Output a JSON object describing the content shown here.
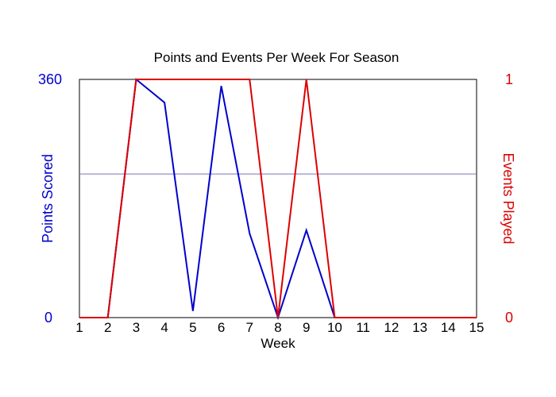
{
  "chart_data": {
    "type": "line",
    "title": "Points and Events Per Week For Season",
    "xlabel": "Week",
    "x": [
      1,
      2,
      3,
      4,
      5,
      6,
      7,
      8,
      9,
      10,
      11,
      12,
      13,
      14,
      15
    ],
    "xlim": [
      1,
      15
    ],
    "y_left": {
      "label": "Points Scored",
      "ylim": [
        0,
        360
      ],
      "ticks": [
        "0",
        "360"
      ],
      "color": "#0000cc"
    },
    "y_right": {
      "label": "Events Played",
      "ylim": [
        0,
        1
      ],
      "ticks": [
        "0",
        "1"
      ],
      "color": "#dd0000"
    },
    "series": [
      {
        "axis": "left",
        "color": "#0000cc",
        "values": [
          0,
          0,
          360,
          325,
          10,
          350,
          127,
          0,
          132,
          0,
          0,
          0,
          0,
          0,
          0
        ]
      },
      {
        "axis": "right",
        "color": "#dd0000",
        "values": [
          0,
          0,
          1,
          1,
          1,
          1,
          1,
          0,
          1,
          0,
          0,
          0,
          0,
          0,
          0
        ]
      }
    ],
    "reference_line": {
      "axis": "left",
      "value": 217,
      "color": "#7777bb"
    },
    "grid": false,
    "legend": "none"
  }
}
